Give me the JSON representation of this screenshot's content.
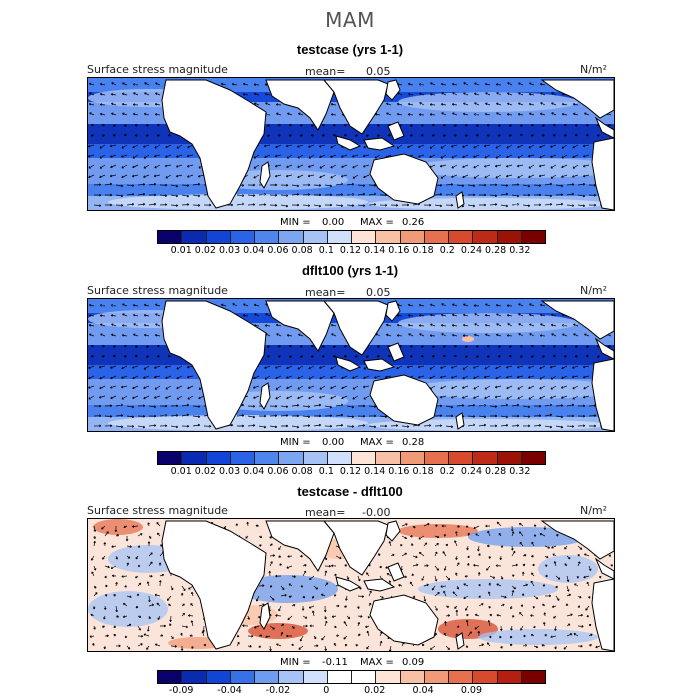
{
  "title": "MAM",
  "colors": {
    "sequential": [
      "#08006b",
      "#0a2bb0",
      "#1245d6",
      "#2a63e6",
      "#4f86ee",
      "#7ca5f2",
      "#a7c3f6",
      "#d1e0fa",
      "#fde4d6",
      "#f8c1a6",
      "#f19a78",
      "#e7704f",
      "#d74a2e",
      "#bd2a17",
      "#9b1307",
      "#7a0000"
    ],
    "diverging": [
      "#08006b",
      "#0a2bb0",
      "#1245d6",
      "#3870e8",
      "#6e9cf0",
      "#a7c3f6",
      "#d1e0fa",
      "#ffffff",
      "#ffffff",
      "#fde4d6",
      "#f8c1a6",
      "#f19a78",
      "#e7704f",
      "#d74a2e",
      "#b51e10",
      "#7a0000"
    ]
  },
  "panels": [
    {
      "title": "testcase (yrs 1-1)",
      "field_label": "Surface stress magnitude",
      "mean_label": "mean=",
      "mean_value": "0.05",
      "units": "N/m²",
      "min_label": "MIN =",
      "min_value": "0.00",
      "max_label": "MAX =",
      "max_value": "0.26",
      "colorbar_ticks": [
        "0.01",
        "0.02",
        "0.03",
        "0.04",
        "0.06",
        "0.08",
        "0.1",
        "0.12",
        "0.14",
        "0.16",
        "0.18",
        "0.2",
        "0.24",
        "0.28",
        "0.32"
      ]
    },
    {
      "title": "dflt100 (yrs 1-1)",
      "field_label": "Surface stress magnitude",
      "mean_label": "mean=",
      "mean_value": "0.05",
      "units": "N/m²",
      "min_label": "MIN =",
      "min_value": "0.00",
      "max_label": "MAX =",
      "max_value": "0.28",
      "colorbar_ticks": [
        "0.01",
        "0.02",
        "0.03",
        "0.04",
        "0.06",
        "0.08",
        "0.1",
        "0.12",
        "0.14",
        "0.16",
        "0.18",
        "0.2",
        "0.24",
        "0.28",
        "0.32"
      ]
    },
    {
      "title": "testcase - dflt100",
      "field_label": "Surface stress magnitude",
      "mean_label": "mean=",
      "mean_value": "-0.00",
      "units": "N/m²",
      "min_label": "MIN =",
      "min_value": "-0.11",
      "max_label": "MAX =",
      "max_value": "0.09",
      "colorbar_ticks": [
        "-0.09",
        "-0.04",
        "-0.02",
        "0",
        "0.02",
        "0.04",
        "0.09"
      ]
    }
  ]
}
